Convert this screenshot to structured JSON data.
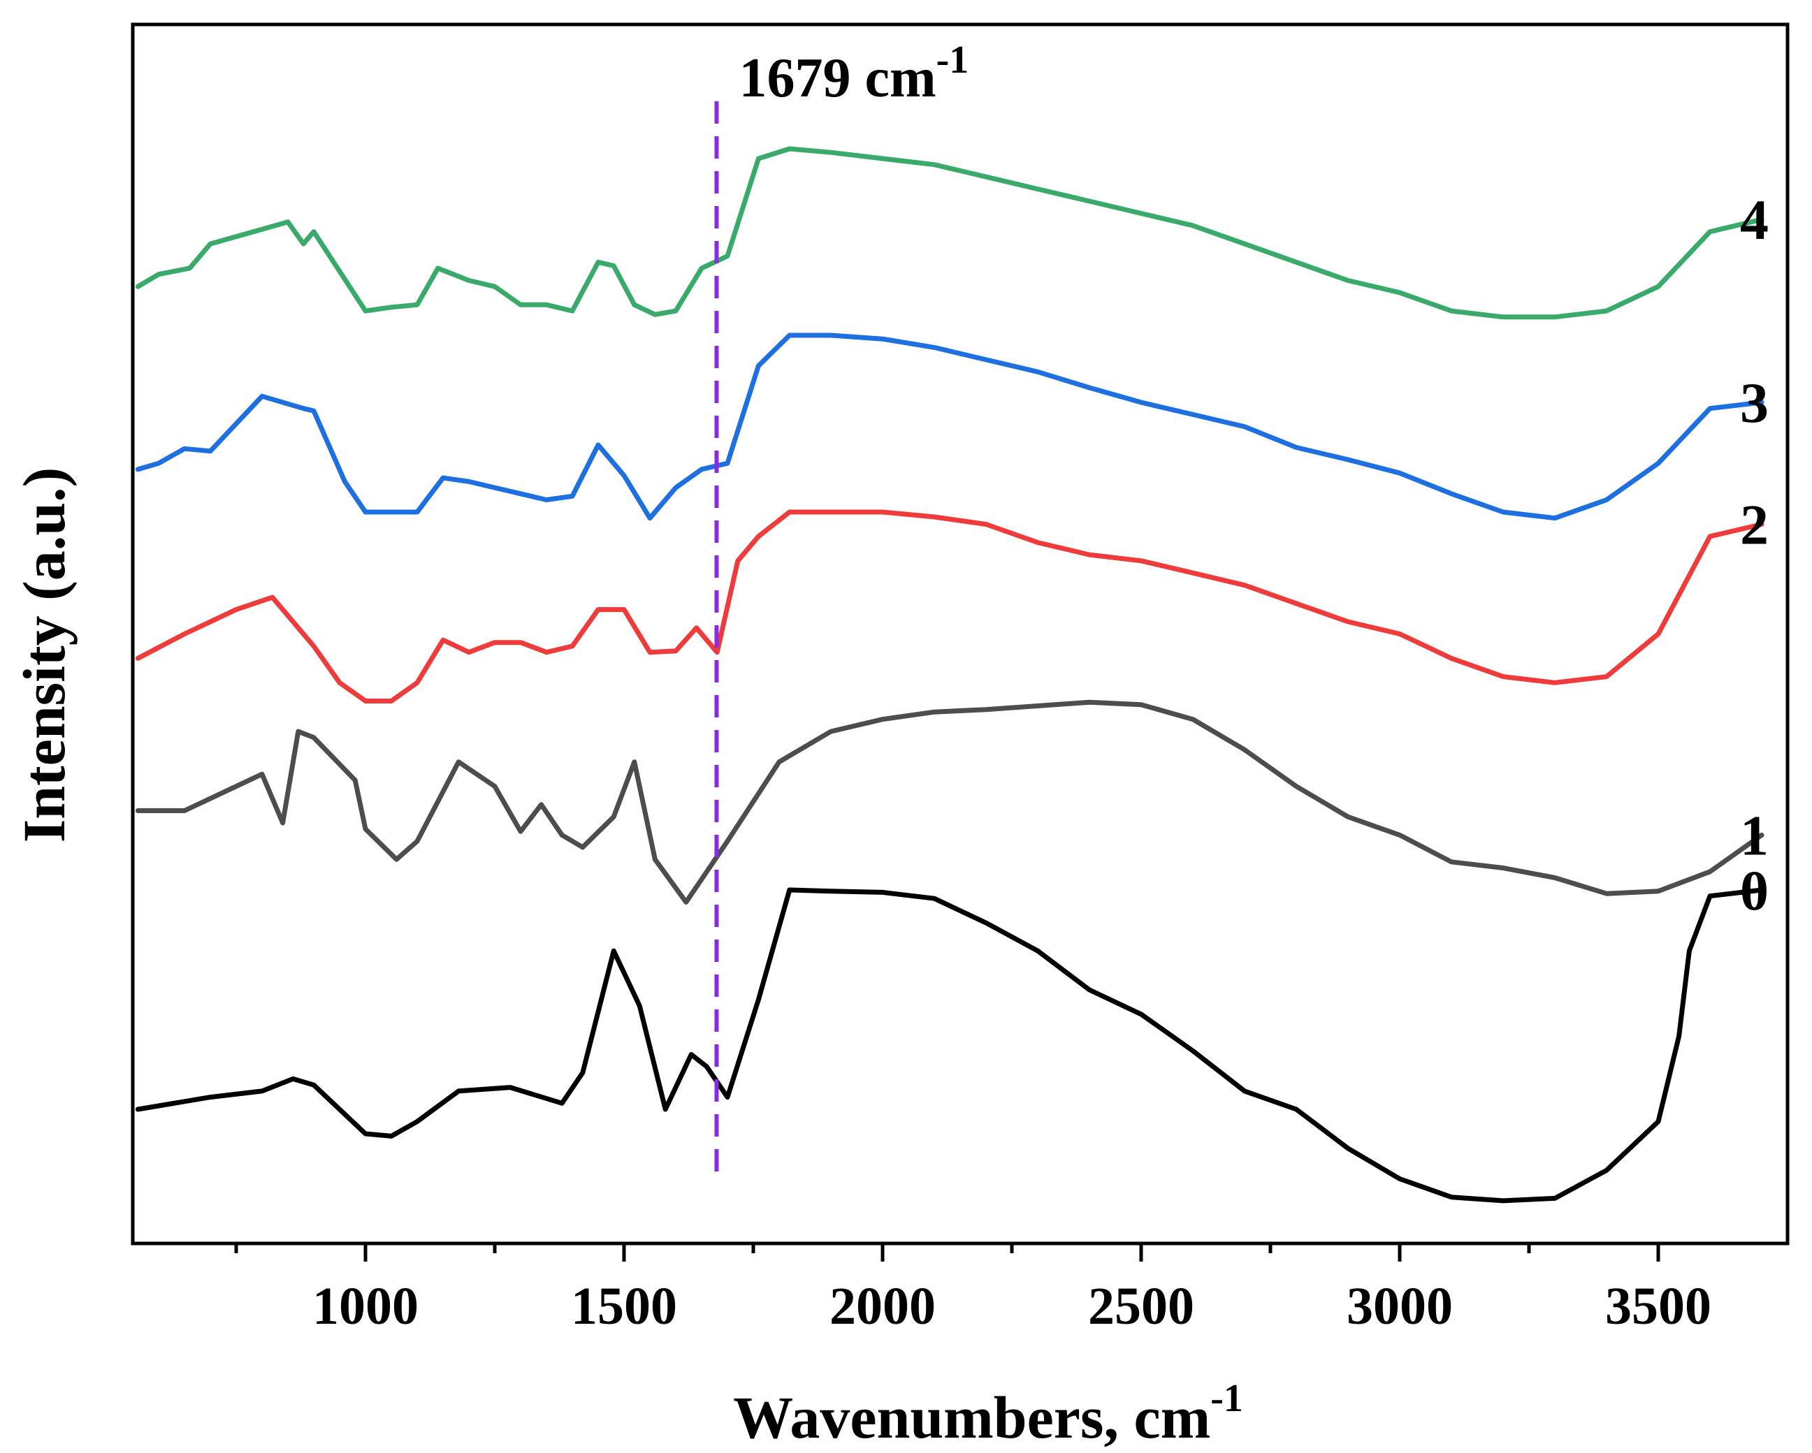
{
  "chart_data": {
    "type": "line",
    "title": "",
    "xlabel": "Wavenumbers, cm",
    "xlabel_sup": "-1",
    "ylabel": "Intensity (a.u.)",
    "xlim": [
      550,
      3750
    ],
    "ylim": [
      0,
      100
    ],
    "xticks": [
      1000,
      1500,
      2000,
      2500,
      3000,
      3500
    ],
    "xtick_labels": [
      "1000",
      "1500",
      "2000",
      "2500",
      "3000",
      "3500"
    ],
    "minor_xticks": [
      750,
      1250,
      1750,
      2250,
      2750,
      3250
    ],
    "y_ticks_shown": false,
    "annotation": {
      "text": "1679 cm",
      "sup": "-1",
      "x": 1679,
      "style": "dashed vertical line",
      "color": "#8A2BE2"
    },
    "series": [
      {
        "name": "0",
        "color": "#000000",
        "x": [
          560,
          700,
          800,
          860,
          900,
          1000,
          1050,
          1100,
          1180,
          1280,
          1380,
          1420,
          1480,
          1530,
          1580,
          1630,
          1660,
          1700,
          1760,
          1820,
          1900,
          2000,
          2100,
          2200,
          2300,
          2400,
          2500,
          2600,
          2700,
          2800,
          2900,
          3000,
          3100,
          3200,
          3300,
          3400,
          3500,
          3540,
          3560,
          3600,
          3700
        ],
        "y": [
          11,
          12,
          12.5,
          13.5,
          13,
          9,
          8.8,
          10,
          12.5,
          12.8,
          11.5,
          14,
          24,
          19.5,
          11,
          15.5,
          14.5,
          12,
          20,
          29,
          28.9,
          28.8,
          28.3,
          26.3,
          24,
          20.8,
          18.8,
          15.8,
          12.5,
          11,
          7.8,
          5.3,
          3.8,
          3.5,
          3.7,
          6,
          10,
          17,
          24,
          28.5,
          29
        ]
      },
      {
        "name": "1",
        "color": "#4D4D4D",
        "x": [
          560,
          650,
          700,
          800,
          840,
          870,
          900,
          980,
          1000,
          1060,
          1100,
          1180,
          1250,
          1300,
          1340,
          1380,
          1420,
          1480,
          1520,
          1560,
          1620,
          1700,
          1800,
          1900,
          2000,
          2100,
          2200,
          2300,
          2400,
          2500,
          2600,
          2700,
          2800,
          2900,
          3000,
          3100,
          3200,
          3300,
          3400,
          3500,
          3600,
          3700
        ],
        "y": [
          35.5,
          35.5,
          36.5,
          38.5,
          34.5,
          42,
          41.5,
          38,
          34,
          31.5,
          33,
          39.5,
          37.5,
          33.8,
          36,
          33.5,
          32.5,
          35,
          39.5,
          31.5,
          28,
          33,
          39.5,
          42,
          43,
          43.6,
          43.8,
          44.1,
          44.4,
          44.2,
          43,
          40.5,
          37.5,
          35,
          33.5,
          31.3,
          30.8,
          30,
          28.7,
          28.9,
          30.5,
          33.5
        ]
      },
      {
        "name": "2",
        "color": "#EE3B3B",
        "x": [
          560,
          650,
          750,
          820,
          900,
          950,
          1000,
          1050,
          1100,
          1150,
          1200,
          1250,
          1300,
          1350,
          1400,
          1450,
          1500,
          1550,
          1600,
          1640,
          1680,
          1720,
          1760,
          1820,
          1900,
          2000,
          2100,
          2200,
          2300,
          2400,
          2500,
          2600,
          2700,
          2800,
          2900,
          3000,
          3100,
          3200,
          3300,
          3400,
          3500,
          3600,
          3700
        ],
        "y": [
          48,
          50,
          52,
          53,
          49,
          46,
          44.5,
          44.5,
          46,
          49.5,
          48.5,
          49.3,
          49.3,
          48.5,
          49,
          52,
          52,
          48.5,
          48.6,
          50.5,
          48.5,
          56,
          58,
          60,
          60,
          60,
          59.6,
          59,
          57.5,
          56.5,
          56,
          55,
          54,
          52.5,
          51,
          50,
          48,
          46.5,
          46,
          46.5,
          50,
          58,
          59
        ]
      },
      {
        "name": "3",
        "color": "#1E6FE0",
        "x": [
          560,
          600,
          650,
          700,
          800,
          880,
          900,
          960,
          1000,
          1050,
          1100,
          1150,
          1200,
          1250,
          1300,
          1350,
          1400,
          1450,
          1500,
          1550,
          1600,
          1650,
          1700,
          1760,
          1820,
          1900,
          2000,
          2100,
          2200,
          2300,
          2400,
          2500,
          2600,
          2700,
          2800,
          2900,
          3000,
          3100,
          3200,
          3300,
          3400,
          3500,
          3600,
          3700
        ],
        "y": [
          63.5,
          64,
          65.2,
          65,
          69.5,
          68.5,
          68.3,
          62.5,
          60,
          60,
          60,
          62.8,
          62.5,
          62,
          61.5,
          61,
          61.3,
          65.5,
          63,
          59.5,
          62,
          63.5,
          64,
          72,
          74.5,
          74.5,
          74.2,
          73.5,
          72.5,
          71.5,
          70.2,
          69,
          68,
          67,
          65.3,
          64.3,
          63.2,
          61.5,
          60,
          59.5,
          61,
          64,
          68.5,
          69
        ]
      },
      {
        "name": "4",
        "color": "#3AAA6A",
        "x": [
          560,
          600,
          660,
          700,
          800,
          850,
          880,
          900,
          1000,
          1050,
          1100,
          1140,
          1200,
          1250,
          1300,
          1350,
          1400,
          1450,
          1480,
          1520,
          1560,
          1600,
          1650,
          1700,
          1760,
          1820,
          1900,
          2000,
          2100,
          2200,
          2300,
          2400,
          2500,
          2600,
          2700,
          2800,
          2900,
          3000,
          3100,
          3200,
          3300,
          3400,
          3500,
          3600,
          3700
        ],
        "y": [
          78.5,
          79.5,
          80,
          82,
          83.2,
          83.8,
          82,
          83,
          76.5,
          76.8,
          77,
          80,
          79,
          78.5,
          77,
          77,
          76.5,
          80.5,
          80.2,
          77,
          76.2,
          76.5,
          80,
          81,
          89,
          89.8,
          89.5,
          89,
          88.5,
          87.5,
          86.5,
          85.5,
          84.5,
          83.5,
          82,
          80.5,
          79,
          78,
          76.5,
          76,
          76,
          76.5,
          78.5,
          83,
          84
        ]
      }
    ]
  }
}
